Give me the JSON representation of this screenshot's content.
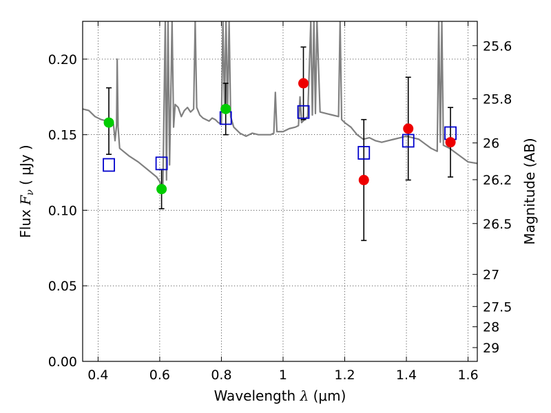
{
  "chart_data": {
    "type": "scatter",
    "title": "",
    "xlabel": "Wavelength  λ (μm)",
    "xlabel_parts": {
      "prefix": "Wavelength  ",
      "lambda": "λ",
      "units": " (μm)"
    },
    "ylabel": "Flux  Fν  ( μJy )",
    "ylabel_parts": {
      "prefix": "Flux  ",
      "symbol": "F",
      "sub": "ν",
      "units": "  ( μJy )"
    },
    "ylabel_right": "Magnitude (AB)",
    "xlim": [
      0.35,
      1.63
    ],
    "ylim": [
      0.0,
      0.225
    ],
    "grid": true,
    "x_ticks": [
      0.4,
      0.6,
      0.8,
      1.0,
      1.2,
      1.4,
      1.6
    ],
    "x_tick_labels": [
      "0.4",
      "0.6",
      "0.8",
      "1",
      "1.2",
      "1.4",
      "1.6"
    ],
    "y_ticks": [
      0.0,
      0.05,
      0.1,
      0.15,
      0.2
    ],
    "y_tick_labels": [
      "0.00",
      "0.05",
      "0.10",
      "0.15",
      "0.20"
    ],
    "right_ticks": [
      {
        "mag": 25.6,
        "label": "25.6"
      },
      {
        "mag": 25.8,
        "label": "25.8"
      },
      {
        "mag": 26.0,
        "label": "26"
      },
      {
        "mag": 26.2,
        "label": "26.2"
      },
      {
        "mag": 26.5,
        "label": "26.5"
      },
      {
        "mag": 27.0,
        "label": "27"
      },
      {
        "mag": 27.5,
        "label": "27.5"
      },
      {
        "mag": 28.0,
        "label": "28"
      },
      {
        "mag": 29.0,
        "label": "29"
      }
    ],
    "colors": {
      "green": "#00cc00",
      "red": "#ee0000",
      "model_square": "#0000cc",
      "sed_line": "#808080",
      "errorbar": "#000000"
    },
    "observed": [
      {
        "x": 0.435,
        "y": 0.158,
        "err_low": 0.137,
        "err_high": 0.181,
        "color": "green"
      },
      {
        "x": 0.606,
        "y": 0.114,
        "err_low": 0.101,
        "err_high": 0.127,
        "color": "green"
      },
      {
        "x": 0.814,
        "y": 0.167,
        "err_low": 0.15,
        "err_high": 0.184,
        "color": "green"
      },
      {
        "x": 1.066,
        "y": 0.184,
        "err_low": 0.16,
        "err_high": 0.208,
        "color": "red"
      },
      {
        "x": 1.262,
        "y": 0.12,
        "err_low": 0.08,
        "err_high": 0.16,
        "color": "red"
      },
      {
        "x": 1.406,
        "y": 0.154,
        "err_low": 0.12,
        "err_high": 0.188,
        "color": "red"
      },
      {
        "x": 1.543,
        "y": 0.145,
        "err_low": 0.122,
        "err_high": 0.168,
        "color": "red"
      }
    ],
    "model_points": [
      {
        "x": 0.435,
        "y": 0.13
      },
      {
        "x": 0.606,
        "y": 0.131
      },
      {
        "x": 0.814,
        "y": 0.161
      },
      {
        "x": 1.066,
        "y": 0.165
      },
      {
        "x": 1.262,
        "y": 0.138
      },
      {
        "x": 1.406,
        "y": 0.146
      },
      {
        "x": 1.543,
        "y": 0.151
      }
    ],
    "sed_curve": [
      [
        0.35,
        0.167
      ],
      [
        0.37,
        0.166
      ],
      [
        0.39,
        0.162
      ],
      [
        0.41,
        0.16
      ],
      [
        0.43,
        0.159
      ],
      [
        0.45,
        0.157
      ],
      [
        0.455,
        0.146
      ],
      [
        0.46,
        0.156
      ],
      [
        0.462,
        0.2
      ],
      [
        0.465,
        0.155
      ],
      [
        0.47,
        0.141
      ],
      [
        0.5,
        0.136
      ],
      [
        0.53,
        0.132
      ],
      [
        0.56,
        0.127
      ],
      [
        0.59,
        0.122
      ],
      [
        0.6,
        0.119
      ],
      [
        0.605,
        0.115
      ],
      [
        0.61,
        0.113
      ],
      [
        0.618,
        0.225
      ],
      [
        0.622,
        0.12
      ],
      [
        0.627,
        0.225
      ],
      [
        0.632,
        0.13
      ],
      [
        0.64,
        0.225
      ],
      [
        0.645,
        0.155
      ],
      [
        0.65,
        0.17
      ],
      [
        0.66,
        0.168
      ],
      [
        0.67,
        0.162
      ],
      [
        0.68,
        0.166
      ],
      [
        0.69,
        0.168
      ],
      [
        0.7,
        0.165
      ],
      [
        0.71,
        0.167
      ],
      [
        0.715,
        0.225
      ],
      [
        0.72,
        0.168
      ],
      [
        0.73,
        0.163
      ],
      [
        0.74,
        0.161
      ],
      [
        0.75,
        0.16
      ],
      [
        0.76,
        0.159
      ],
      [
        0.77,
        0.161
      ],
      [
        0.78,
        0.16
      ],
      [
        0.79,
        0.158
      ],
      [
        0.8,
        0.157
      ],
      [
        0.805,
        0.225
      ],
      [
        0.81,
        0.17
      ],
      [
        0.815,
        0.225
      ],
      [
        0.82,
        0.165
      ],
      [
        0.825,
        0.225
      ],
      [
        0.83,
        0.162
      ],
      [
        0.84,
        0.155
      ],
      [
        0.86,
        0.151
      ],
      [
        0.88,
        0.149
      ],
      [
        0.9,
        0.151
      ],
      [
        0.92,
        0.15
      ],
      [
        0.94,
        0.15
      ],
      [
        0.96,
        0.15
      ],
      [
        0.97,
        0.151
      ],
      [
        0.975,
        0.178
      ],
      [
        0.98,
        0.152
      ],
      [
        1.0,
        0.152
      ],
      [
        1.02,
        0.154
      ],
      [
        1.04,
        0.155
      ],
      [
        1.05,
        0.156
      ],
      [
        1.055,
        0.175
      ],
      [
        1.06,
        0.158
      ],
      [
        1.07,
        0.16
      ],
      [
        1.08,
        0.162
      ],
      [
        1.09,
        0.225
      ],
      [
        1.095,
        0.163
      ],
      [
        1.1,
        0.225
      ],
      [
        1.105,
        0.164
      ],
      [
        1.11,
        0.225
      ],
      [
        1.12,
        0.165
      ],
      [
        1.14,
        0.164
      ],
      [
        1.16,
        0.163
      ],
      [
        1.18,
        0.162
      ],
      [
        1.185,
        0.225
      ],
      [
        1.19,
        0.16
      ],
      [
        1.2,
        0.158
      ],
      [
        1.22,
        0.155
      ],
      [
        1.24,
        0.15
      ],
      [
        1.26,
        0.147
      ],
      [
        1.28,
        0.148
      ],
      [
        1.3,
        0.146
      ],
      [
        1.32,
        0.145
      ],
      [
        1.34,
        0.146
      ],
      [
        1.36,
        0.147
      ],
      [
        1.38,
        0.148
      ],
      [
        1.4,
        0.149
      ],
      [
        1.42,
        0.148
      ],
      [
        1.44,
        0.147
      ],
      [
        1.46,
        0.144
      ],
      [
        1.48,
        0.141
      ],
      [
        1.5,
        0.139
      ],
      [
        1.505,
        0.225
      ],
      [
        1.51,
        0.145
      ],
      [
        1.515,
        0.225
      ],
      [
        1.52,
        0.143
      ],
      [
        1.54,
        0.141
      ],
      [
        1.56,
        0.138
      ],
      [
        1.58,
        0.135
      ],
      [
        1.6,
        0.132
      ],
      [
        1.63,
        0.131
      ]
    ]
  }
}
